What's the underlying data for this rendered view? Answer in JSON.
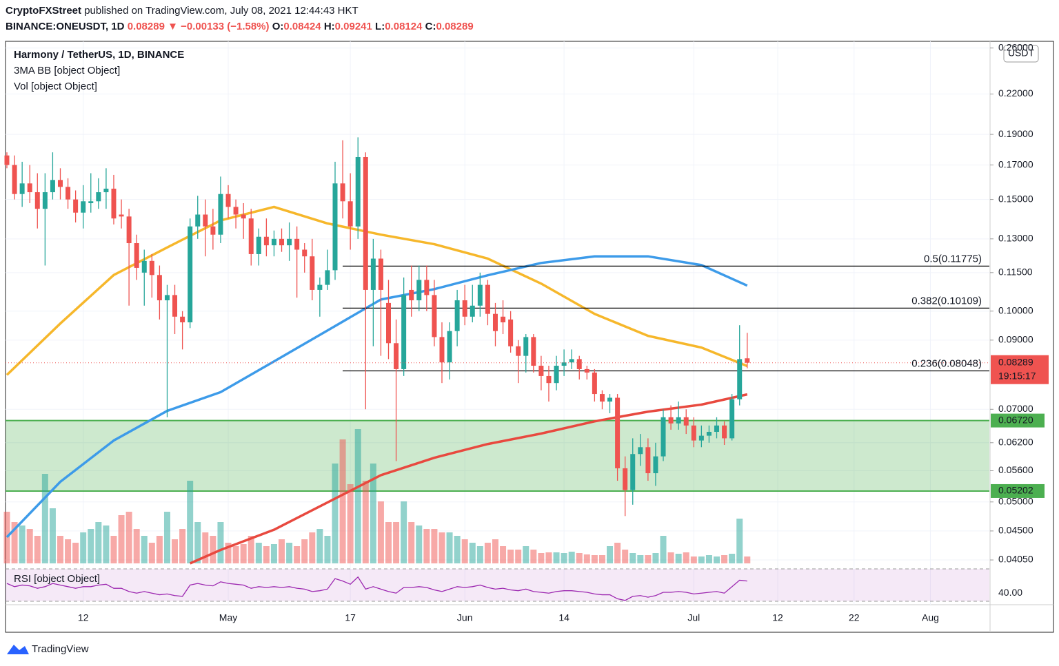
{
  "header": {
    "author": "CryptoFXStreet",
    "published": "published on TradingView.com, July 08, 2021 12:44:43 HKT",
    "ticker": "BINANCE:ONEUSDT, 1D",
    "last": "0.08289",
    "arrow": "▼",
    "change": "−0.00133 (−1.58%)",
    "o_label": "O:",
    "o": "0.08424",
    "h_label": "H:",
    "h": "0.09241",
    "l_label": "L:",
    "l": "0.08124",
    "c_label": "C:",
    "c": "0.08289",
    "change_color": "#ef5350"
  },
  "footer": {
    "brand": "TradingView"
  },
  "chart_data": {
    "type": "candlestick",
    "title": "Harmony / TetherUS, 1D, BINANCE",
    "indicator_label": "3MA BB [object Object]",
    "volume_label": "Vol [object Object]",
    "rsi_label": "RSI [object Object]",
    "y_axis_unit": "USDT",
    "log_scale": true,
    "up_color": "#26a69a",
    "down_color": "#ef5350",
    "x": [
      "Apr 02",
      "Apr 03",
      "Apr 04",
      "Apr 05",
      "Apr 06",
      "Apr 07",
      "Apr 08",
      "Apr 09",
      "Apr 10",
      "Apr 11",
      "Apr 12",
      "Apr 13",
      "Apr 14",
      "Apr 15",
      "Apr 16",
      "Apr 17",
      "Apr 18",
      "Apr 19",
      "Apr 20",
      "Apr 21",
      "Apr 22",
      "Apr 23",
      "Apr 24",
      "Apr 25",
      "Apr 26",
      "Apr 27",
      "Apr 28",
      "Apr 29",
      "Apr 30",
      "May 01",
      "May 02",
      "May 03",
      "May 04",
      "May 05",
      "May 06",
      "May 07",
      "May 08",
      "May 09",
      "May 10",
      "May 11",
      "May 12",
      "May 13",
      "May 14",
      "May 15",
      "May 16",
      "May 17",
      "May 18",
      "May 19",
      "May 20",
      "May 21",
      "May 22",
      "May 23",
      "May 24",
      "May 25",
      "May 26",
      "May 27",
      "May 28",
      "May 29",
      "May 30",
      "May 31",
      "Jun 01",
      "Jun 02",
      "Jun 03",
      "Jun 04",
      "Jun 05",
      "Jun 06",
      "Jun 07",
      "Jun 08",
      "Jun 09",
      "Jun 10",
      "Jun 11",
      "Jun 12",
      "Jun 13",
      "Jun 14",
      "Jun 15",
      "Jun 16",
      "Jun 17",
      "Jun 18",
      "Jun 19",
      "Jun 20",
      "Jun 21",
      "Jun 22",
      "Jun 23",
      "Jun 24",
      "Jun 25",
      "Jun 26",
      "Jun 27",
      "Jun 28",
      "Jun 29",
      "Jun 30",
      "Jul 01",
      "Jul 02",
      "Jul 03",
      "Jul 04",
      "Jul 05",
      "Jul 06",
      "Jul 07",
      "Jul 08"
    ],
    "open": [
      0.176,
      0.17,
      0.153,
      0.159,
      0.154,
      0.145,
      0.154,
      0.161,
      0.157,
      0.15,
      0.143,
      0.148,
      0.149,
      0.154,
      0.156,
      0.142,
      0.141,
      0.128,
      0.115,
      0.12,
      0.114,
      0.104,
      0.106,
      0.098,
      0.096,
      0.136,
      0.142,
      0.136,
      0.132,
      0.153,
      0.146,
      0.142,
      0.14,
      0.123,
      0.131,
      0.127,
      0.13,
      0.127,
      0.13,
      0.125,
      0.122,
      0.108,
      0.11,
      0.116,
      0.159,
      0.149,
      0.136,
      0.175,
      0.108,
      0.121,
      0.103,
      0.089,
      0.081,
      0.108,
      0.104,
      0.112,
      0.106,
      0.091,
      0.083,
      0.093,
      0.104,
      0.098,
      0.102,
      0.11,
      0.099,
      0.098,
      0.097,
      0.088,
      0.085,
      0.091,
      0.082,
      0.079,
      0.077,
      0.082,
      0.083,
      0.084,
      0.081,
      0.08,
      0.074,
      0.072,
      0.073,
      0.0565,
      0.0522,
      0.0595,
      0.061,
      0.0555,
      0.059,
      0.068,
      0.0665,
      0.068,
      0.066,
      0.0625,
      0.0636,
      0.0645,
      0.066,
      0.063,
      0.0726,
      0.08424
    ],
    "high": [
      0.178,
      0.176,
      0.172,
      0.17,
      0.165,
      0.165,
      0.178,
      0.168,
      0.162,
      0.155,
      0.158,
      0.165,
      0.162,
      0.168,
      0.164,
      0.15,
      0.145,
      0.132,
      0.125,
      0.123,
      0.118,
      0.11,
      0.11,
      0.1,
      0.14,
      0.152,
      0.15,
      0.145,
      0.163,
      0.158,
      0.15,
      0.148,
      0.145,
      0.135,
      0.14,
      0.134,
      0.135,
      0.138,
      0.136,
      0.128,
      0.13,
      0.113,
      0.125,
      0.172,
      0.186,
      0.165,
      0.188,
      0.178,
      0.13,
      0.125,
      0.112,
      0.097,
      0.113,
      0.118,
      0.118,
      0.118,
      0.112,
      0.096,
      0.096,
      0.108,
      0.11,
      0.11,
      0.115,
      0.112,
      0.103,
      0.104,
      0.1,
      0.09,
      0.092,
      0.092,
      0.085,
      0.082,
      0.085,
      0.087,
      0.087,
      0.085,
      0.082,
      0.081,
      0.075,
      0.074,
      0.074,
      0.059,
      0.063,
      0.064,
      0.063,
      0.062,
      0.07,
      0.071,
      0.072,
      0.07,
      0.068,
      0.066,
      0.066,
      0.068,
      0.067,
      0.074,
      0.095,
      0.09241
    ],
    "low": [
      0.168,
      0.15,
      0.146,
      0.148,
      0.135,
      0.118,
      0.15,
      0.15,
      0.145,
      0.138,
      0.135,
      0.143,
      0.145,
      0.145,
      0.137,
      0.135,
      0.102,
      0.112,
      0.102,
      0.105,
      0.097,
      0.068,
      0.092,
      0.087,
      0.094,
      0.13,
      0.122,
      0.125,
      0.128,
      0.14,
      0.135,
      0.13,
      0.118,
      0.118,
      0.122,
      0.122,
      0.124,
      0.12,
      0.105,
      0.115,
      0.104,
      0.098,
      0.108,
      0.112,
      0.14,
      0.125,
      0.13,
      0.07,
      0.088,
      0.085,
      0.084,
      0.058,
      0.079,
      0.098,
      0.1,
      0.1,
      0.088,
      0.077,
      0.078,
      0.088,
      0.095,
      0.096,
      0.098,
      0.095,
      0.088,
      0.092,
      0.086,
      0.077,
      0.08,
      0.08,
      0.075,
      0.072,
      0.075,
      0.079,
      0.081,
      0.078,
      0.078,
      0.072,
      0.07,
      0.069,
      0.054,
      0.0475,
      0.0495,
      0.057,
      0.054,
      0.053,
      0.058,
      0.065,
      0.065,
      0.064,
      0.061,
      0.061,
      0.062,
      0.063,
      0.0615,
      0.0625,
      0.071,
      0.08124
    ],
    "close": [
      0.17,
      0.153,
      0.159,
      0.154,
      0.145,
      0.154,
      0.161,
      0.157,
      0.15,
      0.143,
      0.149,
      0.149,
      0.154,
      0.156,
      0.14,
      0.141,
      0.128,
      0.117,
      0.12,
      0.114,
      0.104,
      0.106,
      0.098,
      0.096,
      0.136,
      0.142,
      0.136,
      0.132,
      0.153,
      0.146,
      0.142,
      0.14,
      0.123,
      0.131,
      0.127,
      0.13,
      0.127,
      0.13,
      0.125,
      0.122,
      0.108,
      0.11,
      0.116,
      0.159,
      0.149,
      0.136,
      0.175,
      0.108,
      0.121,
      0.108,
      0.089,
      0.081,
      0.106,
      0.104,
      0.112,
      0.106,
      0.091,
      0.083,
      0.093,
      0.104,
      0.098,
      0.102,
      0.11,
      0.099,
      0.093,
      0.096,
      0.088,
      0.085,
      0.091,
      0.082,
      0.079,
      0.077,
      0.082,
      0.083,
      0.084,
      0.081,
      0.08,
      0.074,
      0.072,
      0.073,
      0.0565,
      0.0522,
      0.0595,
      0.061,
      0.0555,
      0.059,
      0.068,
      0.0665,
      0.068,
      0.066,
      0.0625,
      0.0636,
      0.0645,
      0.066,
      0.063,
      0.0726,
      0.084,
      0.08289
    ],
    "volume": [
      75,
      60,
      55,
      50,
      40,
      130,
      80,
      40,
      35,
      30,
      45,
      50,
      60,
      55,
      40,
      70,
      75,
      50,
      40,
      30,
      40,
      75,
      35,
      50,
      120,
      60,
      45,
      40,
      60,
      30,
      25,
      28,
      40,
      30,
      25,
      28,
      35,
      30,
      25,
      35,
      45,
      50,
      40,
      145,
      180,
      115,
      195,
      120,
      145,
      90,
      60,
      60,
      90,
      60,
      55,
      50,
      50,
      45,
      45,
      40,
      35,
      30,
      25,
      30,
      35,
      25,
      20,
      20,
      25,
      20,
      15,
      16,
      16,
      15,
      17,
      15,
      13,
      12,
      12,
      25,
      30,
      20,
      15,
      12,
      12,
      15,
      40,
      16,
      14,
      16,
      10,
      10,
      12,
      10,
      12,
      14,
      65,
      10
    ],
    "rsi": [
      52,
      48,
      50,
      49,
      46,
      48,
      52,
      50,
      48,
      46,
      48,
      48,
      50,
      51,
      46,
      46,
      42,
      40,
      42,
      40,
      38,
      39,
      37,
      36,
      50,
      52,
      50,
      49,
      54,
      52,
      51,
      50,
      46,
      48,
      47,
      48,
      47,
      48,
      46,
      45,
      42,
      43,
      45,
      58,
      55,
      51,
      60,
      45,
      48,
      45,
      42,
      40,
      47,
      47,
      48,
      47,
      44,
      42,
      45,
      48,
      47,
      48,
      50,
      47,
      45,
      46,
      44,
      43,
      45,
      42,
      41,
      40,
      42,
      43,
      43,
      42,
      41,
      39,
      38,
      38,
      33,
      31,
      36,
      37,
      35,
      37,
      41,
      41,
      42,
      41,
      39,
      40,
      41,
      42,
      40,
      48,
      56,
      55
    ],
    "rsi_color": "#9c27b0",
    "rsi_ylim": [
      25.7,
      75.1
    ],
    "rsi_bands": [
      30,
      70
    ],
    "rsi_ticks": [
      {
        "value": 40,
        "label": "40.00"
      }
    ],
    "moving_averages": [
      {
        "color": "#f6b72b",
        "x": [
          "Apr 02",
          "Apr 09",
          "Apr 16",
          "Apr 23",
          "Apr 30",
          "May 07",
          "May 14",
          "May 21",
          "May 28",
          "Jun 04",
          "Jun 11",
          "Jun 18",
          "Jun 25",
          "Jul 02",
          "Jul 08"
        ],
        "values": [
          0.0793,
          0.0956,
          0.114,
          0.126,
          0.139,
          0.146,
          0.1375,
          0.132,
          0.1275,
          0.121,
          0.1105,
          0.099,
          0.0914,
          0.0876,
          0.0819
        ]
      },
      {
        "color": "#3d9be9",
        "x": [
          "Apr 02",
          "Apr 09",
          "Apr 16",
          "Apr 23",
          "Apr 30",
          "May 07",
          "May 14",
          "May 21",
          "May 28",
          "Jun 04",
          "Jun 11",
          "Jun 18",
          "Jun 25",
          "Jul 02",
          "Jul 08"
        ],
        "values": [
          0.044,
          0.0538,
          0.0625,
          0.0696,
          0.0745,
          0.0833,
          0.0932,
          0.1043,
          0.1083,
          0.1139,
          0.1191,
          0.122,
          0.122,
          0.1182,
          0.1097
        ]
      },
      {
        "color": "#e8493f",
        "x": [
          "Apr 26",
          "Apr 30",
          "May 07",
          "May 14",
          "May 21",
          "May 28",
          "Jun 04",
          "Jun 11",
          "Jun 18",
          "Jun 25",
          "Jul 02",
          "Jul 08"
        ],
        "values": [
          0.04,
          0.042,
          0.0452,
          0.0499,
          0.0551,
          0.0587,
          0.0617,
          0.0641,
          0.067,
          0.0694,
          0.0712,
          0.0739
        ]
      }
    ],
    "fib_levels": [
      {
        "value": 0.11775,
        "label": "0.5(0.11775)"
      },
      {
        "value": 0.10109,
        "label": "0.382(0.10109)"
      },
      {
        "value": 0.08048,
        "label": "0.236(0.08048)"
      }
    ],
    "zone": {
      "color": "#4caf50",
      "top": {
        "value": 0.0672,
        "label": "0.06720"
      },
      "bottom": {
        "value": 0.05202,
        "label": "0.05202"
      }
    },
    "last_price": {
      "value": 0.08289,
      "label": "0.08289",
      "countdown": "19:15:17"
    },
    "ylim": [
      0.0398,
      0.2664
    ],
    "yticks": [
      {
        "value": 0.26,
        "label": "0.26000"
      },
      {
        "value": 0.22,
        "label": "0.22000"
      },
      {
        "value": 0.19,
        "label": "0.19000"
      },
      {
        "value": 0.17,
        "label": "0.17000"
      },
      {
        "value": 0.15,
        "label": "0.15000"
      },
      {
        "value": 0.13,
        "label": "0.13000"
      },
      {
        "value": 0.115,
        "label": "0.11500"
      },
      {
        "value": 0.1,
        "label": "0.10000"
      },
      {
        "value": 0.09,
        "label": "0.09000"
      },
      {
        "value": 0.07,
        "label": "0.07000"
      },
      {
        "value": 0.062,
        "label": "0.06200"
      },
      {
        "value": 0.056,
        "label": "0.05600"
      },
      {
        "value": 0.05,
        "label": "0.05000"
      },
      {
        "value": 0.045,
        "label": "0.04500"
      },
      {
        "value": 0.0405,
        "label": "0.04050"
      }
    ],
    "xticks": [
      {
        "value": "Apr 12",
        "label": "12"
      },
      {
        "value": "May 01",
        "label": "May"
      },
      {
        "value": "May 17",
        "label": "17"
      },
      {
        "value": "Jun 01",
        "label": "Jun"
      },
      {
        "value": "Jun 14",
        "label": "14"
      },
      {
        "value": "Jul 01",
        "label": "Jul"
      },
      {
        "value": "Jul 12",
        "label": "12"
      },
      {
        "value": "Jul 22",
        "label": "22"
      },
      {
        "value": "Aug 01",
        "label": "Aug"
      }
    ],
    "grid": true
  }
}
